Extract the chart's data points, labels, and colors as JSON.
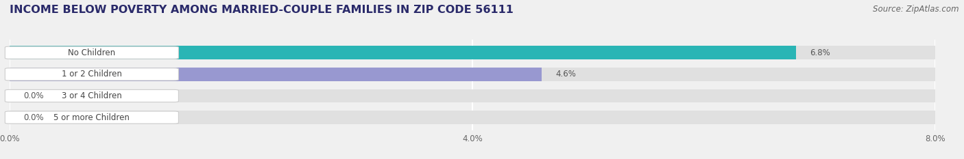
{
  "title": "INCOME BELOW POVERTY AMONG MARRIED-COUPLE FAMILIES IN ZIP CODE 56111",
  "source": "Source: ZipAtlas.com",
  "categories": [
    "No Children",
    "1 or 2 Children",
    "3 or 4 Children",
    "5 or more Children"
  ],
  "values": [
    6.8,
    4.6,
    0.0,
    0.0
  ],
  "bar_colors": [
    "#2ab5b5",
    "#9898d0",
    "#f087a0",
    "#f5c07a"
  ],
  "bar_bg_color": "#e8e8e8",
  "label_bg_color": "#ffffff",
  "xlim": [
    0,
    8.0
  ],
  "xticks": [
    0.0,
    4.0,
    8.0
  ],
  "xticklabels": [
    "0.0%",
    "4.0%",
    "8.0%"
  ],
  "value_labels": [
    "6.8%",
    "4.6%",
    "0.0%",
    "0.0%"
  ],
  "background_color": "#f0f0f0",
  "bar_height": 0.62,
  "title_fontsize": 11.5,
  "source_fontsize": 8.5,
  "label_fontsize": 8.5,
  "value_fontsize": 8.5
}
